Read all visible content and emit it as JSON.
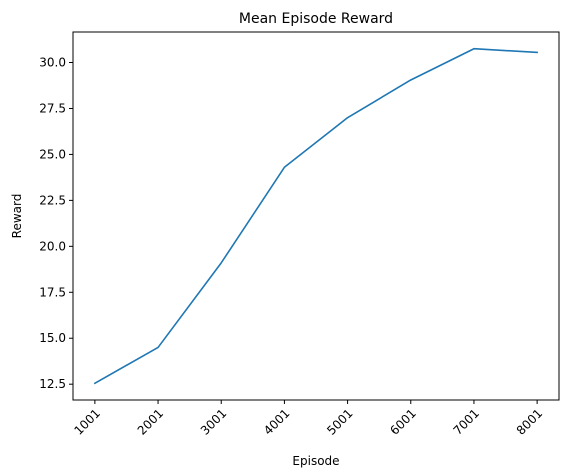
{
  "chart_data": {
    "type": "line",
    "title": "Mean Episode Reward",
    "xlabel": "Episode",
    "ylabel": "Reward",
    "categories": [
      "1001",
      "2001",
      "3001",
      "4001",
      "5001",
      "6001",
      "7001",
      "8001"
    ],
    "series": [
      {
        "values": [
          12.55,
          14.5,
          19.1,
          24.3,
          27.0,
          29.05,
          30.75,
          30.55
        ],
        "color": "#1f77b4"
      }
    ],
    "ylim": [
      11.64,
      31.66
    ],
    "yticks": [
      12.5,
      15.0,
      17.5,
      20.0,
      22.5,
      25.0,
      27.5,
      30.0
    ],
    "ytick_labels": [
      "12.5",
      "15.0",
      "17.5",
      "20.0",
      "22.5",
      "25.0",
      "27.5",
      "30.0"
    ],
    "xtick_rotation": 45,
    "grid": false,
    "legend": "none"
  }
}
